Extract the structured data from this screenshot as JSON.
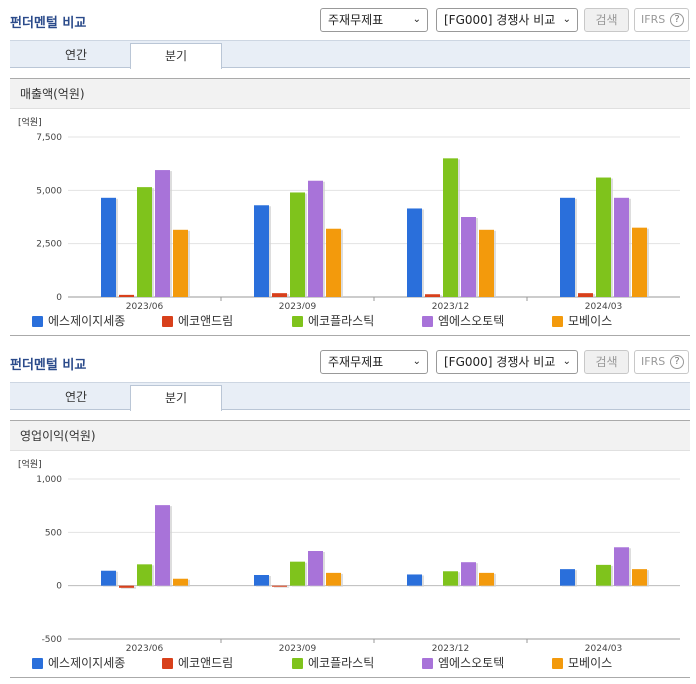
{
  "panels": [
    {
      "title": "펀더멘털 비교",
      "select_statement": "주재무제표",
      "select_compare": "[FG000] 경쟁사 비교",
      "search_label": "검색",
      "ifrs_label": "IFRS",
      "help_label": "?",
      "tabs": [
        "연간",
        "분기"
      ],
      "active_tab": "분기",
      "chart_title": "매출액(억원)"
    },
    {
      "title": "펀더멘털 비교",
      "select_statement": "주재무제표",
      "select_compare": "[FG000] 경쟁사 비교",
      "search_label": "검색",
      "ifrs_label": "IFRS",
      "help_label": "?",
      "tabs": [
        "연간",
        "분기"
      ],
      "active_tab": "분기",
      "chart_title": "영업이익(억원)"
    }
  ],
  "chart_data": [
    {
      "type": "bar",
      "unit_label": "[억원]",
      "categories": [
        "2023/06",
        "2023/09",
        "2023/12",
        "2024/03"
      ],
      "ylim": [
        0,
        7500
      ],
      "yticks": [
        0,
        2500,
        5000,
        7500
      ],
      "ytick_labels": [
        "0",
        "2,500",
        "5,000",
        "7,500"
      ],
      "series": [
        {
          "name": "에스제이지세종",
          "color": "#2a6fdb",
          "values": [
            4650,
            4300,
            4150,
            4650
          ]
        },
        {
          "name": "에코앤드림",
          "color": "#d8401b",
          "values": [
            100,
            180,
            130,
            180
          ]
        },
        {
          "name": "에코플라스틱",
          "color": "#7fc31c",
          "values": [
            5150,
            4900,
            6500,
            5600
          ]
        },
        {
          "name": "엠에스오토텍",
          "color": "#a873d9",
          "values": [
            5950,
            5450,
            3750,
            4650
          ]
        },
        {
          "name": "모베이스",
          "color": "#f39a0c",
          "values": [
            3150,
            3200,
            3150,
            3250
          ]
        }
      ]
    },
    {
      "type": "bar",
      "unit_label": "[억원]",
      "categories": [
        "2023/06",
        "2023/09",
        "2023/12",
        "2024/03"
      ],
      "ylim": [
        -500,
        1000
      ],
      "yticks": [
        -500,
        0,
        500,
        1000
      ],
      "ytick_labels": [
        "-500",
        "0",
        "500",
        "1,000"
      ],
      "series": [
        {
          "name": "에스제이지세종",
          "color": "#2a6fdb",
          "values": [
            140,
            100,
            105,
            155
          ]
        },
        {
          "name": "에코앤드림",
          "color": "#d8401b",
          "values": [
            -20,
            -10,
            0,
            0
          ]
        },
        {
          "name": "에코플라스틱",
          "color": "#7fc31c",
          "values": [
            200,
            225,
            135,
            195
          ]
        },
        {
          "name": "엠에스오토텍",
          "color": "#a873d9",
          "values": [
            755,
            325,
            220,
            360
          ]
        },
        {
          "name": "모베이스",
          "color": "#f39a0c",
          "values": [
            65,
            120,
            120,
            155
          ]
        }
      ]
    }
  ]
}
